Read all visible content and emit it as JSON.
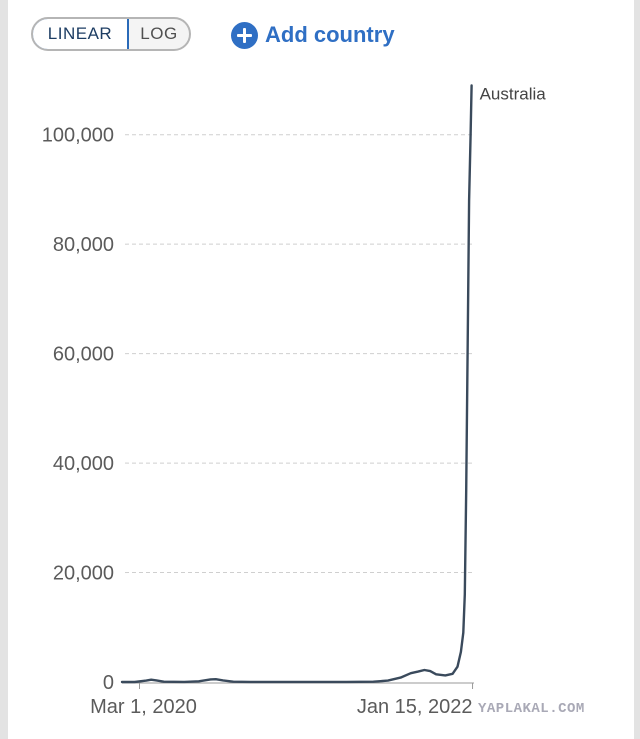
{
  "controls": {
    "linear_label": "LINEAR",
    "log_label": "LOG",
    "add_country_label": "Add country",
    "add_icon": "plus-circle-icon"
  },
  "colors": {
    "accent": "#2f6fc4",
    "line": "#3a4a5c",
    "grid": "#cfcfcf"
  },
  "watermark": "YAPLAKAL.COM",
  "chart_data": {
    "type": "line",
    "title": "",
    "xlabel": "",
    "ylabel": "",
    "scale": "linear",
    "grid": "horizontal dashed",
    "ylim": [
      0,
      110000
    ],
    "xlim": [
      "2020-01-25",
      "2022-01-18"
    ],
    "y_ticks": [
      {
        "value": 0,
        "label": "0"
      },
      {
        "value": 20000,
        "label": "20,000"
      },
      {
        "value": 40000,
        "label": "40,000"
      },
      {
        "value": 60000,
        "label": "60,000"
      },
      {
        "value": 80000,
        "label": "80,000"
      },
      {
        "value": 100000,
        "label": "100,000"
      }
    ],
    "x_ticks": [
      {
        "value": "2020-03-01",
        "label": "Mar 1, 2020"
      },
      {
        "value": "2022-01-15",
        "label": "Jan 15, 2022"
      }
    ],
    "series": [
      {
        "name": "Australia",
        "points": [
          [
            "2020-01-25",
            0
          ],
          [
            "2020-02-20",
            5
          ],
          [
            "2020-03-15",
            250
          ],
          [
            "2020-03-25",
            420
          ],
          [
            "2020-04-05",
            300
          ],
          [
            "2020-04-20",
            60
          ],
          [
            "2020-06-01",
            15
          ],
          [
            "2020-07-01",
            120
          ],
          [
            "2020-07-25",
            480
          ],
          [
            "2020-08-05",
            520
          ],
          [
            "2020-08-20",
            300
          ],
          [
            "2020-09-10",
            60
          ],
          [
            "2020-10-15",
            20
          ],
          [
            "2021-01-10",
            25
          ],
          [
            "2021-05-01",
            15
          ],
          [
            "2021-06-25",
            60
          ],
          [
            "2021-07-25",
            250
          ],
          [
            "2021-08-20",
            800
          ],
          [
            "2021-09-10",
            1600
          ],
          [
            "2021-09-25",
            1900
          ],
          [
            "2021-10-08",
            2200
          ],
          [
            "2021-10-20",
            2000
          ],
          [
            "2021-11-01",
            1400
          ],
          [
            "2021-11-20",
            1200
          ],
          [
            "2021-12-05",
            1500
          ],
          [
            "2021-12-15",
            2800
          ],
          [
            "2021-12-22",
            5500
          ],
          [
            "2021-12-27",
            9000
          ],
          [
            "2021-12-30",
            16000
          ],
          [
            "2022-01-02",
            35000
          ],
          [
            "2022-01-05",
            62000
          ],
          [
            "2022-01-08",
            88000
          ],
          [
            "2022-01-11",
            100000
          ],
          [
            "2022-01-13",
            109000
          ]
        ]
      }
    ]
  }
}
